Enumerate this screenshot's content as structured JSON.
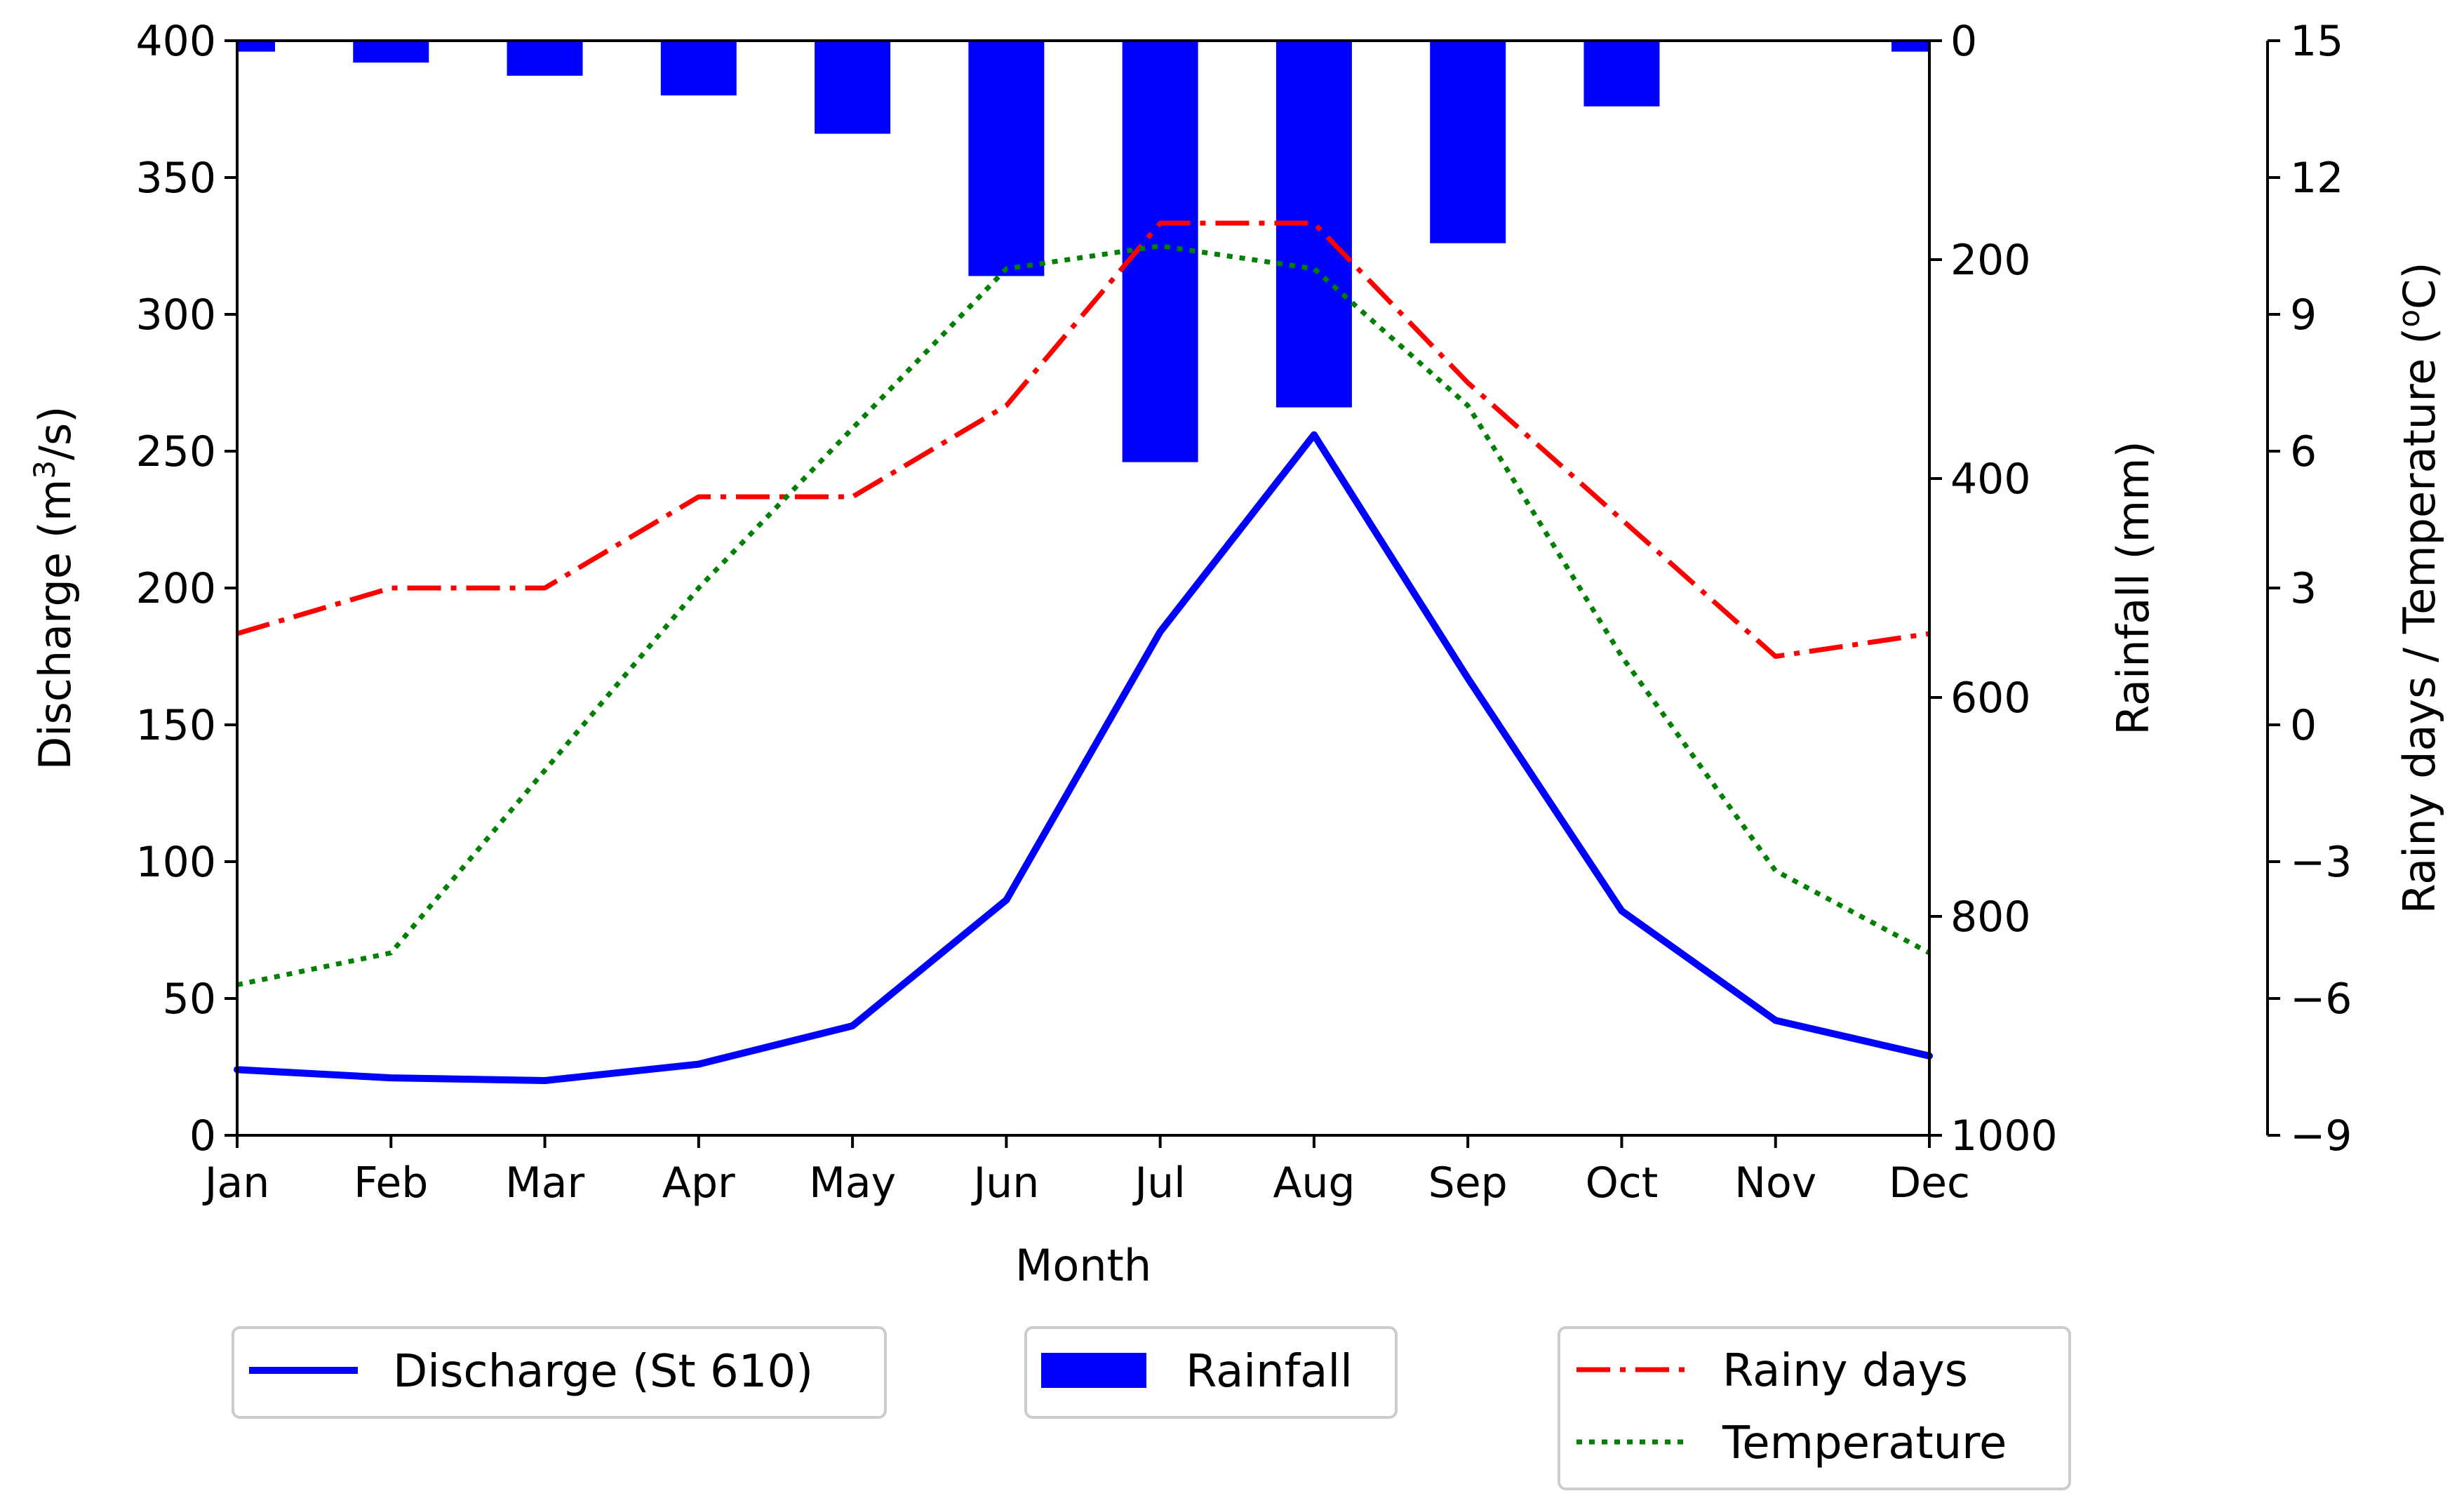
{
  "chart_data": {
    "type": "line",
    "categories": [
      "Jan",
      "Feb",
      "Mar",
      "Apr",
      "May",
      "Jun",
      "Jul",
      "Aug",
      "Sep",
      "Oct",
      "Nov",
      "Dec"
    ],
    "xlabel": "Month",
    "axes": {
      "left": {
        "label_prefix": "Discharge (m",
        "label_sup": "3",
        "label_suffix": "/s)",
        "range": [
          0,
          400
        ],
        "ticks": [
          0,
          50,
          100,
          150,
          200,
          250,
          300,
          350,
          400
        ]
      },
      "right1": {
        "label": "Rainfall (mm)",
        "range": [
          0,
          1000
        ],
        "inverted": true,
        "ticks": [
          0,
          200,
          400,
          600,
          800,
          1000
        ]
      },
      "right2": {
        "label_prefix": "Rainy days / Temperature (",
        "label_sup": "o",
        "label_suffix": "C)",
        "range": [
          -9,
          15
        ],
        "ticks": [
          15,
          12,
          9,
          6,
          3,
          0,
          -3,
          -6,
          -9
        ],
        "tick_labels": [
          "15",
          "12",
          "9",
          "6",
          "3",
          "0",
          "−3",
          "−6",
          "−9"
        ]
      }
    },
    "series": [
      {
        "name": "Discharge (St 610)",
        "axis": "left",
        "kind": "line",
        "style": "solid",
        "color": "#0000ff",
        "values": [
          24,
          21,
          20,
          26,
          40,
          86,
          184,
          256,
          167,
          82,
          42,
          29
        ]
      },
      {
        "name": "Rainfall",
        "axis": "right1",
        "kind": "bar",
        "color": "#0000ff",
        "values": [
          10,
          20,
          32,
          50,
          85,
          215,
          385,
          335,
          185,
          60,
          0,
          10
        ]
      },
      {
        "name": "Rainy days",
        "axis": "right2",
        "kind": "line",
        "style": "dashdot",
        "color": "#ff0000",
        "values": [
          2.0,
          3.0,
          3.0,
          5.0,
          5.0,
          7.0,
          11.0,
          11.0,
          7.5,
          4.5,
          1.5,
          2.0
        ]
      },
      {
        "name": "Temperature",
        "axis": "right2",
        "kind": "line",
        "style": "dotted",
        "color": "#008000",
        "values": [
          -5.7,
          -5.0,
          -1.0,
          3.0,
          6.5,
          10.0,
          10.5,
          10.0,
          7.0,
          1.5,
          -3.2,
          -5.0
        ]
      }
    ],
    "legend": [
      {
        "label": "Discharge (St 610)",
        "series": 0
      },
      {
        "label": "Rainfall",
        "series": 1
      },
      {
        "label": "Rainy days",
        "series": 2
      },
      {
        "label": "Temperature",
        "series": 3
      }
    ]
  }
}
